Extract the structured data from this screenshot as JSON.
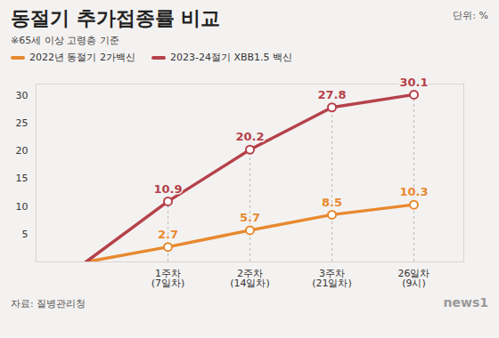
{
  "chart_data": {
    "type": "line",
    "title": "동절기 추가접종률 비교",
    "subtitle": "※65세 이상 고령층 기준",
    "unit": "단위: %",
    "source": "자료: 질병관리청",
    "credit": "news1",
    "categories": [
      null,
      "1주차\n(7일차)",
      "2주차\n(14일차)",
      "3주차\n(21일차)",
      "26일차\n(9시)"
    ],
    "series": [
      {
        "name": "2022년 동절기 2가백신",
        "color": "#e8892f",
        "values": [
          0,
          2.7,
          5.7,
          8.5,
          10.3
        ],
        "value_labels": [
          null,
          "2.7",
          "5.7",
          "8.5",
          "10.3"
        ]
      },
      {
        "name": "2023-24절기 XBB1.5 백신",
        "color": "#b5424a",
        "values": [
          0,
          10.9,
          20.2,
          27.8,
          30.1
        ],
        "value_labels": [
          null,
          "10.9",
          "20.2",
          "27.8",
          "30.1"
        ]
      }
    ],
    "ylim": [
      0,
      32
    ],
    "yticks": [
      5,
      10,
      15,
      20,
      25,
      30
    ],
    "grid": true,
    "data_labels": true,
    "marker": "circle",
    "legend": "top-left"
  }
}
